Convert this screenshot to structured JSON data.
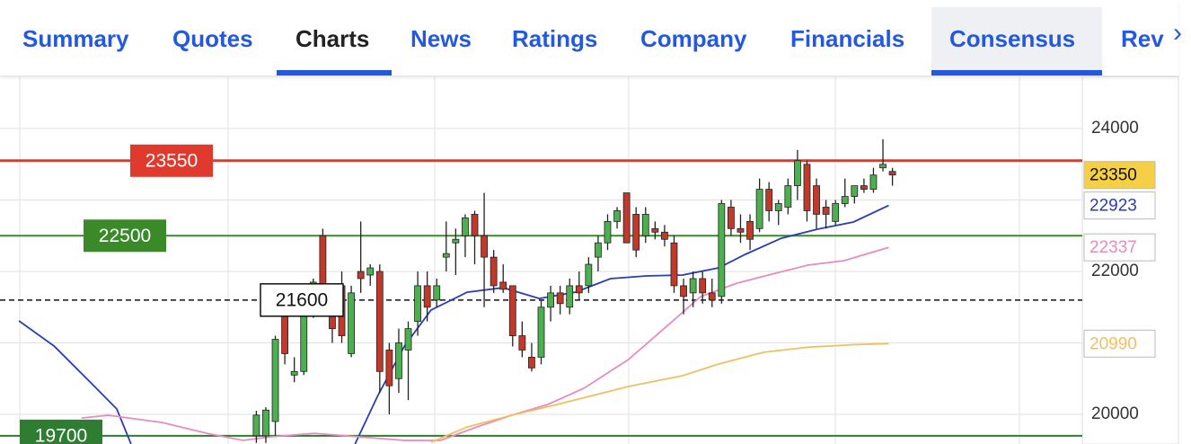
{
  "nav": {
    "tabs": [
      "Summary",
      "Quotes",
      "Charts",
      "News",
      "Ratings",
      "Company",
      "Financials",
      "Consensus",
      "Rev"
    ],
    "active_tab": 2,
    "highlighted_tab": 7
  },
  "chart_data": {
    "type": "candlestick",
    "xlim": [
      -27,
      87
    ],
    "ylim": [
      19585,
      24730
    ],
    "yticks": [
      20000,
      22000,
      24000
    ],
    "ygrid": [
      20000,
      21000,
      22000,
      23000,
      24000
    ],
    "grid": true,
    "candles": {
      "up_color": "#4caf50",
      "down_color": "#c0392b",
      "open": [
        19700,
        19700,
        19900,
        21500,
        20550,
        20600,
        21500,
        22500,
        21500,
        21800,
        20850,
        22000,
        21950,
        22000,
        20900,
        20500,
        20900,
        21300,
        21800,
        21600,
        22200,
        22400,
        22500,
        22800,
        22500,
        22200,
        21850,
        21800,
        21100,
        20800,
        20800,
        21500,
        21700,
        21500,
        21800,
        21800,
        22200,
        22400,
        22700,
        23100,
        22800,
        22500,
        22600,
        22550,
        22400,
        21800,
        21700,
        21900,
        21700,
        21650,
        22900,
        22600,
        22700,
        22600,
        23150,
        22850,
        22900,
        23200,
        23500,
        23200,
        22900,
        22700,
        22950,
        23050,
        23200,
        23150,
        23450,
        23400
      ],
      "high": [
        20050,
        20100,
        21100,
        21700,
        20800,
        21600,
        21900,
        22600,
        21700,
        22000,
        21800,
        22700,
        22100,
        22100,
        21000,
        21200,
        21300,
        22000,
        22000,
        21900,
        22700,
        22600,
        22800,
        22850,
        23100,
        22300,
        22100,
        21800,
        21300,
        21000,
        21600,
        21800,
        21800,
        21900,
        22000,
        22200,
        22500,
        22800,
        22900,
        23100,
        22900,
        22900,
        22700,
        22650,
        22500,
        21900,
        22000,
        22000,
        21900,
        23000,
        23000,
        22800,
        22800,
        23300,
        23250,
        23000,
        23300,
        23700,
        23550,
        23300,
        23000,
        23000,
        23300,
        23200,
        23300,
        23450,
        23850,
        23450
      ],
      "low": [
        19600,
        19600,
        19700,
        20700,
        20450,
        20550,
        21350,
        21500,
        21000,
        21000,
        20800,
        21700,
        21800,
        20300,
        20000,
        20300,
        20200,
        21100,
        21300,
        21500,
        22000,
        21950,
        22200,
        22100,
        21500,
        21700,
        21700,
        20950,
        20800,
        20600,
        20700,
        21300,
        21400,
        21400,
        21600,
        21700,
        22000,
        22300,
        22600,
        22400,
        22200,
        22400,
        22450,
        22350,
        21700,
        21400,
        21500,
        21550,
        21500,
        21550,
        22500,
        22400,
        22300,
        22550,
        22700,
        22650,
        22800,
        23000,
        22700,
        22600,
        22600,
        22650,
        22900,
        22950,
        23100,
        23100,
        23400,
        23200
      ],
      "close": [
        19990,
        20060,
        21050,
        20850,
        20600,
        21500,
        21850,
        21600,
        21200,
        21100,
        21700,
        21900,
        22050,
        20600,
        20400,
        21000,
        21200,
        21800,
        21500,
        21800,
        22250,
        22450,
        22750,
        22500,
        22200,
        21800,
        21750,
        21100,
        20900,
        20650,
        21500,
        21700,
        21550,
        21800,
        21700,
        22100,
        22400,
        22700,
        22850,
        22400,
        22300,
        22800,
        22550,
        22450,
        21800,
        21650,
        21900,
        21700,
        21600,
        22950,
        22600,
        22550,
        22450,
        23150,
        22850,
        22950,
        23200,
        23550,
        22850,
        22800,
        22800,
        22950,
        23050,
        23200,
        23150,
        23350,
        23500,
        23350
      ],
      "last_label_color": "#f5cf45"
    },
    "series": [
      {
        "color": "#2b3cb5",
        "x": [
          -25.0,
          -21.3,
          -17.5,
          -14.7,
          -13.2,
          null,
          10.4,
          12.8,
          15.6,
          18.4,
          22.2,
          26.0,
          29.8,
          33.6,
          37.3,
          41.1,
          44.9,
          48.7,
          51.5,
          55.3,
          59.1,
          62.9,
          66.6
        ],
        "values": [
          21308,
          20956,
          20452,
          20075,
          19585,
          null,
          19585,
          20264,
          20956,
          21459,
          21710,
          21773,
          21622,
          21710,
          21899,
          21937,
          21950,
          22050,
          22239,
          22465,
          22591,
          22692,
          22923
        ]
      },
      {
        "color": "#e88bbf",
        "x": [
          -18.4,
          -15.6,
          -9.9,
          -5.2,
          -1.4,
          1.4,
          6.1,
          10.9,
          15.6,
          19.4,
          23.2,
          26.9,
          30.7,
          34.5,
          39.2,
          43.0,
          46.8,
          50.6,
          54.3,
          58.1,
          61.9,
          66.6
        ],
        "values": [
          19949,
          19987,
          19886,
          19735,
          19635,
          19685,
          19735,
          19685,
          19635,
          19635,
          19823,
          19987,
          20138,
          20365,
          20767,
          21207,
          21648,
          21836,
          21962,
          22088,
          22151,
          22337
        ]
      },
      {
        "color": "#f0c060",
        "x": [
          18.4,
          22.2,
          26.9,
          31.7,
          39.2,
          44.9,
          48.7,
          53.4,
          58.1,
          62.9,
          66.6
        ],
        "values": [
          19610,
          19823,
          19987,
          20138,
          20390,
          20541,
          20704,
          20868,
          20940,
          20975,
          20990
        ]
      }
    ],
    "levels": [
      {
        "value": 23550,
        "color": "#e03a2e",
        "style": "solid"
      },
      {
        "value": 22500,
        "color": "#3a8a2a",
        "style": "solid"
      },
      {
        "value": 21600,
        "color": "#111111",
        "style": "dashed"
      },
      {
        "value": 19700,
        "color": "#2e7d32",
        "style": "solid"
      }
    ]
  }
}
